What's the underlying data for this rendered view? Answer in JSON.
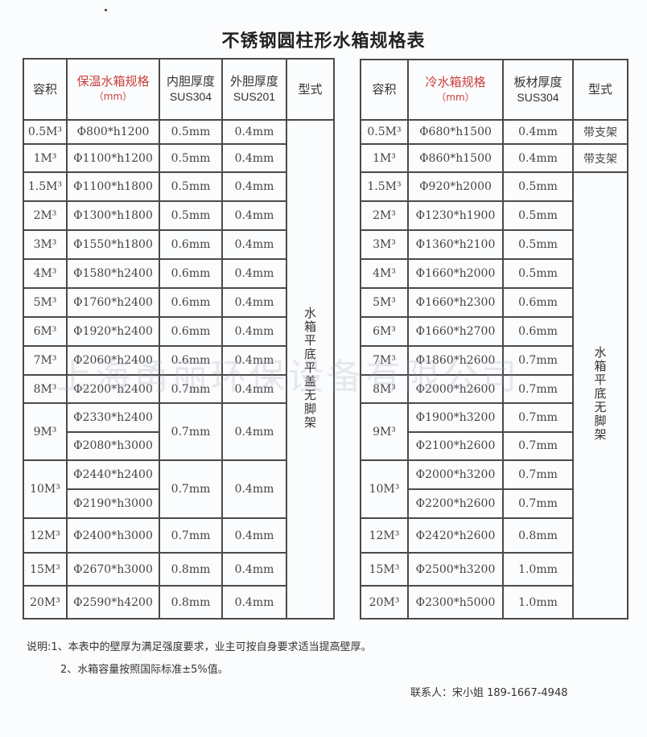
{
  "title": "不锈钢圆柱形水箱规格表",
  "watermark": "上海甬丽环保设备有限公司",
  "left_table": {
    "headers": {
      "capacity": "容积",
      "spec": "保温水箱规格",
      "spec_unit": "（mm）",
      "inner": "内胆厚度",
      "inner_sub": "SUS304",
      "outer": "外胆厚度",
      "outer_sub": "SUS201",
      "type": "型式"
    },
    "type_value": "水箱平底平盖无脚架",
    "rows": [
      {
        "capacity": "0.5M³",
        "specs": [
          "Φ800*h1200"
        ],
        "inner": "0.5mm",
        "outer": "0.4mm"
      },
      {
        "capacity": "1M³",
        "specs": [
          "Φ1100*h1200"
        ],
        "inner": "0.5mm",
        "outer": "0.4mm"
      },
      {
        "capacity": "1.5M³",
        "specs": [
          "Φ1100*h1800"
        ],
        "inner": "0.5mm",
        "outer": "0.4mm"
      },
      {
        "capacity": "2M³",
        "specs": [
          "Φ1300*h1800"
        ],
        "inner": "0.5mm",
        "outer": "0.4mm"
      },
      {
        "capacity": "3M³",
        "specs": [
          "Φ1550*h1800"
        ],
        "inner": "0.6mm",
        "outer": "0.4mm"
      },
      {
        "capacity": "4M³",
        "specs": [
          "Φ1580*h2400"
        ],
        "inner": "0.6mm",
        "outer": "0.4mm"
      },
      {
        "capacity": "5M³",
        "specs": [
          "Φ1760*h2400"
        ],
        "inner": "0.6mm",
        "outer": "0.4mm"
      },
      {
        "capacity": "6M³",
        "specs": [
          "Φ1920*h2400"
        ],
        "inner": "0.6mm",
        "outer": "0.4mm"
      },
      {
        "capacity": "7M³",
        "specs": [
          "Φ2060*h2400"
        ],
        "inner": "0.6mm",
        "outer": "0.4mm"
      },
      {
        "capacity": "8M³",
        "specs": [
          "Φ2200*h2400"
        ],
        "inner": "0.7mm",
        "outer": "0.4mm"
      },
      {
        "capacity": "9M³",
        "specs": [
          "Φ2330*h2400",
          "Φ2080*h3000"
        ],
        "inner": "0.7mm",
        "outer": "0.4mm"
      },
      {
        "capacity": "10M³",
        "specs": [
          "Φ2440*h2400",
          "Φ2190*h3000"
        ],
        "inner": "0.7mm",
        "outer": "0.4mm"
      },
      {
        "capacity": "12M³",
        "specs": [
          "Φ2400*h3000"
        ],
        "inner": "0.7mm",
        "outer": "0.4mm"
      },
      {
        "capacity": "15M³",
        "specs": [
          "Φ2670*h3000"
        ],
        "inner": "0.8mm",
        "outer": "0.4mm"
      },
      {
        "capacity": "20M³",
        "specs": [
          "Φ2590*h4200"
        ],
        "inner": "0.8mm",
        "outer": "0.4mm"
      }
    ]
  },
  "right_table": {
    "headers": {
      "capacity": "容积",
      "spec": "冷水箱规格",
      "spec_unit": "（mm）",
      "thick": "板材厚度",
      "thick_sub": "SUS304",
      "type": "型式"
    },
    "type_value": "水箱平底无脚架",
    "rows": [
      {
        "capacity": "0.5M³",
        "items": [
          {
            "spec": "Φ680*h1500",
            "thick": "0.4mm"
          }
        ],
        "type": "带支架"
      },
      {
        "capacity": "1M³",
        "items": [
          {
            "spec": "Φ860*h1500",
            "thick": "0.4mm"
          }
        ],
        "type": "带支架"
      },
      {
        "capacity": "1.5M³",
        "items": [
          {
            "spec": "Φ920*h2000",
            "thick": "0.5mm"
          }
        ]
      },
      {
        "capacity": "2M³",
        "items": [
          {
            "spec": "Φ1230*h1900",
            "thick": "0.5mm"
          }
        ]
      },
      {
        "capacity": "3M³",
        "items": [
          {
            "spec": "Φ1360*h2100",
            "thick": "0.5mm"
          }
        ]
      },
      {
        "capacity": "4M³",
        "items": [
          {
            "spec": "Φ1660*h2000",
            "thick": "0.5mm"
          }
        ]
      },
      {
        "capacity": "5M³",
        "items": [
          {
            "spec": "Φ1660*h2300",
            "thick": "0.6mm"
          }
        ]
      },
      {
        "capacity": "6M³",
        "items": [
          {
            "spec": "Φ1660*h2700",
            "thick": "0.6mm"
          }
        ]
      },
      {
        "capacity": "7M³",
        "items": [
          {
            "spec": "Φ1860*h2600",
            "thick": "0.7mm"
          }
        ]
      },
      {
        "capacity": "8M³",
        "items": [
          {
            "spec": "Φ2000*h2600",
            "thick": "0.7mm"
          }
        ]
      },
      {
        "capacity": "9M³",
        "items": [
          {
            "spec": "Φ1900*h3200",
            "thick": "0.7mm"
          },
          {
            "spec": "Φ2100*h2600",
            "thick": "0.7mm"
          }
        ]
      },
      {
        "capacity": "10M³",
        "items": [
          {
            "spec": "Φ2000*h3200",
            "thick": "0.7mm"
          },
          {
            "spec": "Φ2200*h2600",
            "thick": "0.7mm"
          }
        ]
      },
      {
        "capacity": "12M³",
        "items": [
          {
            "spec": "Φ2420*h2600",
            "thick": "0.8mm"
          }
        ]
      },
      {
        "capacity": "15M³",
        "items": [
          {
            "spec": "Φ2500*h3200",
            "thick": "1.0mm"
          }
        ]
      },
      {
        "capacity": "20M³",
        "items": [
          {
            "spec": "Φ2300*h5000",
            "thick": "1.0mm"
          }
        ]
      }
    ]
  },
  "notes": {
    "line1": "说明:1、本表中的壁厚为满足强度要求，业主可按自身要求适当提高壁厚。",
    "line2": "2、水箱容量按照国际标准±5%值。",
    "contact": "联系人：宋小姐  189-1667-4948"
  }
}
